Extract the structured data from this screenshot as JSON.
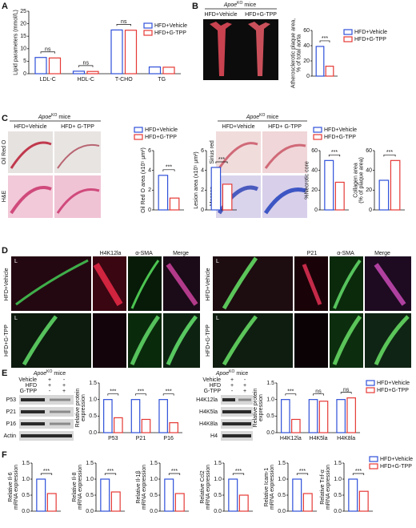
{
  "panel_labels": [
    "A",
    "B",
    "C",
    "D",
    "E",
    "F"
  ],
  "images": {
    "b": {
      "group": {
        "main": "Apoe",
        "sup": "KO",
        "tail": "mice"
      },
      "columns": [
        "HFD+Vehicle",
        "HFD+G-TPP"
      ]
    },
    "c_left": {
      "group": {
        "main": "Apoe",
        "sup": "KO",
        "tail": "mice"
      },
      "columns": [
        "HFD+Vehicle",
        "HFD+ G-TPP"
      ],
      "rows": [
        "Oil Red O",
        "H&E"
      ]
    },
    "c_right": {
      "group": {
        "main": "Apoe",
        "sup": "KO",
        "tail": "mice"
      },
      "columns": [
        "HFD+Vehicle",
        "HFD+ G-TPP"
      ],
      "rows": [
        "Sirius red",
        "Masson"
      ]
    },
    "d_left": {
      "lumen": [
        "L",
        "L"
      ],
      "columns": [
        "H4K12la",
        "α-SMA",
        "Merge"
      ],
      "rows": [
        "HFD+Vehicle",
        "HFD+G-TPP"
      ]
    },
    "d_right": {
      "lumen": [
        "L",
        "L"
      ],
      "columns": [
        "P21",
        "α-SMA",
        "Merge"
      ],
      "rows": [
        "HFD+Vehicle",
        "HFD+G-TPP"
      ]
    },
    "e_left": {
      "group": {
        "main": "Apoe",
        "sup": "KO",
        "tail": "mice"
      },
      "conditions": [
        {
          "name": "Vehicle",
          "marks": [
            "+",
            "-"
          ]
        },
        {
          "name": "HFD",
          "marks": [
            "+",
            "+"
          ]
        },
        {
          "name": "G-TPP",
          "marks": [
            "-",
            "+"
          ]
        }
      ],
      "rows": [
        "P53",
        "P21",
        "P16",
        "Actin"
      ]
    },
    "e_right": {
      "group": {
        "main": "Apoe",
        "sup": "KO",
        "tail": "mice"
      },
      "conditions": [
        {
          "name": "Vehicle",
          "marks": [
            "+",
            "-"
          ]
        },
        {
          "name": "HFD",
          "marks": [
            "+",
            "+"
          ]
        },
        {
          "name": "G-TPP",
          "marks": [
            "-",
            "+"
          ]
        }
      ],
      "rows": [
        "H4K12la",
        "H4K5la",
        "H4K8la",
        "H4"
      ]
    }
  },
  "chart_data": [
    {
      "type": "bar",
      "ylabel": [
        "Lipid parameters (mmol/L)"
      ],
      "categories": [
        "LDL-C",
        "HDL-C",
        "T-CHO",
        "TG"
      ],
      "series": [
        {
          "name": "HFD+Vehicle",
          "color": "#2f50d8",
          "values": [
            6.5,
            1.0,
            17.5,
            2.7
          ]
        },
        {
          "name": "HFD+G-TPP",
          "color": "#e53935",
          "values": [
            6.3,
            0.9,
            17.4,
            2.6
          ]
        }
      ],
      "ylim": [
        0,
        25
      ],
      "yticks": [
        0,
        5,
        10,
        15,
        20,
        25
      ],
      "significance": [
        "ns",
        "ns",
        "ns",
        null
      ]
    },
    {
      "type": "bar",
      "ylabel": [
        "Atherosclerotic plaque area,",
        "% of total aorta"
      ],
      "categories": [
        null
      ],
      "series": [
        {
          "name": "HFD+Vehicle",
          "color": "#2f50d8",
          "values": [
            39
          ]
        },
        {
          "name": "HFD+G-TPP",
          "color": "#e53935",
          "values": [
            13
          ]
        }
      ],
      "ylim": [
        0,
        60
      ],
      "yticks": [
        0,
        20,
        40,
        60
      ],
      "significance": [
        "***"
      ]
    },
    {
      "type": "bar",
      "ylabel": [
        "Oil Red O area (x10⁵ μm²)"
      ],
      "categories": [
        null
      ],
      "series": [
        {
          "name": "HFD+Vehicle",
          "color": "#2f50d8",
          "values": [
            3.5
          ]
        },
        {
          "name": "HFD+G-TPP",
          "color": "#e53935",
          "values": [
            1.2
          ]
        }
      ],
      "ylim": [
        0,
        6
      ],
      "yticks": [
        0,
        2,
        4,
        6
      ],
      "significance": [
        "***"
      ]
    },
    {
      "type": "bar",
      "ylabel": [
        "Lesion area (x10⁵ μm²)"
      ],
      "categories": [
        null
      ],
      "series": [
        {
          "color": "#2f50d8",
          "values": [
            4.3
          ]
        },
        {
          "color": "#e53935",
          "values": [
            2.6
          ]
        }
      ],
      "ylim": [
        0,
        6
      ],
      "yticks": [
        0,
        2,
        4,
        6
      ],
      "significance": [
        "***"
      ]
    },
    {
      "type": "bar",
      "ylabel": [
        "%Necrotic core"
      ],
      "categories": [
        null
      ],
      "series": [
        {
          "name": "HFD+Vehicle",
          "color": "#2f50d8",
          "values": [
            50
          ]
        },
        {
          "name": "HFD+G-TPP",
          "color": "#e53935",
          "values": [
            28
          ]
        }
      ],
      "ylim": [
        0,
        60
      ],
      "yticks": [
        0,
        20,
        40,
        60
      ],
      "significance": [
        "***"
      ]
    },
    {
      "type": "bar",
      "ylabel": [
        "Collagen area",
        "(% of plaque area)"
      ],
      "categories": [
        null
      ],
      "series": [
        {
          "color": "#2f50d8",
          "values": [
            30
          ]
        },
        {
          "color": "#e53935",
          "values": [
            50
          ]
        }
      ],
      "ylim": [
        0,
        60
      ],
      "yticks": [
        0,
        20,
        40,
        60
      ],
      "significance": [
        "***"
      ]
    },
    {
      "type": "bar",
      "ylabel": [
        "Relative protein",
        "expression"
      ],
      "categories": [
        "P53",
        "P21",
        "P16"
      ],
      "series": [
        {
          "color": "#2f50d8",
          "values": [
            1.0,
            1.0,
            1.0
          ]
        },
        {
          "color": "#e53935",
          "values": [
            0.45,
            0.4,
            0.3
          ]
        }
      ],
      "ylim": [
        0,
        1.5
      ],
      "yticks": [
        {
          "value": 0,
          "label": "0.0"
        },
        {
          "value": 0.5,
          "label": "0.5"
        },
        {
          "value": 1,
          "label": "1.0"
        },
        {
          "value": 1.5,
          "label": "1.5"
        }
      ],
      "significance": [
        "***",
        "***",
        "***"
      ]
    },
    {
      "type": "bar",
      "ylabel": [
        "Relative protein",
        "expression"
      ],
      "categories": [
        "H4K12la",
        "H4K5la",
        "H4K8la"
      ],
      "series": [
        {
          "name": "HFD+Vehicle",
          "color": "#2f50d8",
          "values": [
            1.0,
            1.0,
            1.0
          ]
        },
        {
          "name": "HFD+G-TPP",
          "color": "#e53935",
          "values": [
            0.4,
            0.95,
            1.05
          ]
        }
      ],
      "ylim": [
        0,
        1.5
      ],
      "yticks": [
        {
          "value": 0,
          "label": "0.0"
        },
        {
          "value": 0.5,
          "label": "0.5"
        },
        {
          "value": 1,
          "label": "1.0"
        },
        {
          "value": 1.5,
          "label": "1.5"
        }
      ],
      "significance": [
        "***",
        "ns",
        "ns"
      ]
    },
    {
      "type": "bar",
      "ylabel": [
        "Relative Il-6",
        "mRNA expression"
      ],
      "categories": [
        null
      ],
      "series": [
        {
          "color": "#2f50d8",
          "values": [
            1.0
          ]
        },
        {
          "color": "#e53935",
          "values": [
            0.55
          ]
        }
      ],
      "ylim": [
        0,
        1.5
      ],
      "yticks": [
        {
          "value": 0,
          "label": "0.0"
        },
        {
          "value": 0.5,
          "label": "0.5"
        },
        {
          "value": 1,
          "label": "1.0"
        },
        {
          "value": 1.5,
          "label": "1.5"
        }
      ],
      "significance": [
        "***"
      ]
    },
    {
      "type": "bar",
      "ylabel": [
        "Relative Il-8",
        "mRNA expression"
      ],
      "categories": [
        null
      ],
      "series": [
        {
          "color": "#2f50d8",
          "values": [
            1.0
          ]
        },
        {
          "color": "#e53935",
          "values": [
            0.6
          ]
        }
      ],
      "ylim": [
        0,
        1.5
      ],
      "yticks": [
        {
          "value": 0,
          "label": "0.0"
        },
        {
          "value": 0.5,
          "label": "0.5"
        },
        {
          "value": 1,
          "label": "1.0"
        },
        {
          "value": 1.5,
          "label": "1.5"
        }
      ],
      "significance": [
        "***"
      ]
    },
    {
      "type": "bar",
      "ylabel": [
        "Relative Il-1β",
        "mRNA expression"
      ],
      "categories": [
        null
      ],
      "series": [
        {
          "color": "#2f50d8",
          "values": [
            1.0
          ]
        },
        {
          "color": "#e53935",
          "values": [
            0.55
          ]
        }
      ],
      "ylim": [
        0,
        1.5
      ],
      "yticks": [
        {
          "value": 0,
          "label": "0.0"
        },
        {
          "value": 0.5,
          "label": "0.5"
        },
        {
          "value": 1,
          "label": "1.0"
        },
        {
          "value": 1.5,
          "label": "1.5"
        }
      ],
      "significance": [
        "***"
      ]
    },
    {
      "type": "bar",
      "ylabel": [
        "Relative Ccl2",
        "mRNA expression"
      ],
      "categories": [
        null
      ],
      "series": [
        {
          "color": "#2f50d8",
          "values": [
            1.0
          ]
        },
        {
          "color": "#e53935",
          "values": [
            0.5
          ]
        }
      ],
      "ylim": [
        0,
        1.5
      ],
      "yticks": [
        {
          "value": 0,
          "label": "0.0"
        },
        {
          "value": 0.5,
          "label": "0.5"
        },
        {
          "value": 1,
          "label": "1.0"
        },
        {
          "value": 1.5,
          "label": "1.5"
        }
      ],
      "significance": [
        "***"
      ]
    },
    {
      "type": "bar",
      "ylabel": [
        "Relative Icam-1",
        "mRNA expression"
      ],
      "categories": [
        null
      ],
      "series": [
        {
          "color": "#2f50d8",
          "values": [
            1.0
          ]
        },
        {
          "color": "#e53935",
          "values": [
            0.55
          ]
        }
      ],
      "ylim": [
        0,
        1.5
      ],
      "yticks": [
        {
          "value": 0,
          "label": "0.0"
        },
        {
          "value": 0.5,
          "label": "0.5"
        },
        {
          "value": 1,
          "label": "1.0"
        },
        {
          "value": 1.5,
          "label": "1.5"
        }
      ],
      "significance": [
        "***"
      ]
    },
    {
      "type": "bar",
      "ylabel": [
        "Relative Tnf-α",
        "mRNA expression"
      ],
      "categories": [
        null
      ],
      "series": [
        {
          "name": "HFD+Vehicle",
          "color": "#2f50d8",
          "values": [
            1.0
          ]
        },
        {
          "name": "HFD+G-TPP",
          "color": "#e53935",
          "values": [
            0.62
          ]
        }
      ],
      "ylim": [
        0,
        1.5
      ],
      "yticks": [
        {
          "value": 0,
          "label": "0.0"
        },
        {
          "value": 0.5,
          "label": "0.5"
        },
        {
          "value": 1,
          "label": "1.0"
        },
        {
          "value": 1.5,
          "label": "1.5"
        }
      ],
      "significance": [
        "***"
      ]
    }
  ]
}
